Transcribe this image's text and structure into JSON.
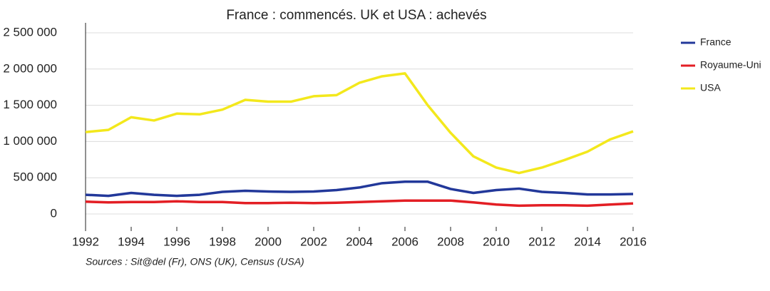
{
  "chart_data": {
    "type": "line",
    "title": "France : commencés. UK et USA : achevés",
    "note": "Sources : Sit@del (Fr), ONS (UK), Census (USA)",
    "x": [
      1992,
      1993,
      1994,
      1995,
      1996,
      1997,
      1998,
      1999,
      2000,
      2001,
      2002,
      2003,
      2004,
      2005,
      2006,
      2007,
      2008,
      2009,
      2010,
      2011,
      2012,
      2013,
      2014,
      2015,
      2016
    ],
    "series": [
      {
        "name": "France",
        "color": "#22389a",
        "values": [
          265000,
          250000,
          290000,
          265000,
          250000,
          265000,
          305000,
          320000,
          310000,
          305000,
          310000,
          330000,
          365000,
          425000,
          445000,
          445000,
          345000,
          290000,
          330000,
          350000,
          305000,
          290000,
          270000,
          270000,
          275000
        ]
      },
      {
        "name": "Royaume-Uni",
        "color": "#e31e24",
        "values": [
          170000,
          160000,
          165000,
          165000,
          175000,
          165000,
          165000,
          150000,
          150000,
          155000,
          150000,
          155000,
          165000,
          175000,
          185000,
          185000,
          185000,
          160000,
          130000,
          115000,
          120000,
          120000,
          115000,
          130000,
          145000
        ]
      },
      {
        "name": "USA",
        "color": "#f3e81c",
        "values": [
          1130000,
          1160000,
          1335000,
          1290000,
          1385000,
          1375000,
          1440000,
          1575000,
          1550000,
          1550000,
          1625000,
          1640000,
          1810000,
          1900000,
          1940000,
          1500000,
          1120000,
          795000,
          640000,
          565000,
          640000,
          745000,
          860000,
          1030000,
          1140000
        ]
      }
    ],
    "xlim": [
      1992,
      2016
    ],
    "xticks": [
      1992,
      1994,
      1996,
      1998,
      2000,
      2002,
      2004,
      2006,
      2008,
      2010,
      2012,
      2014,
      2016
    ],
    "ylim": [
      0,
      2500000
    ],
    "yticks": [
      0,
      {
        "value": 500000,
        "label": "500 000"
      },
      {
        "value": 1000000,
        "label": "1 000 000"
      },
      {
        "value": 1500000,
        "label": "1 500 000"
      },
      {
        "value": 2000000,
        "label": "2 000 000"
      },
      {
        "value": 2500000,
        "label": "2 500 000"
      }
    ],
    "grid": true,
    "legend": "right"
  }
}
